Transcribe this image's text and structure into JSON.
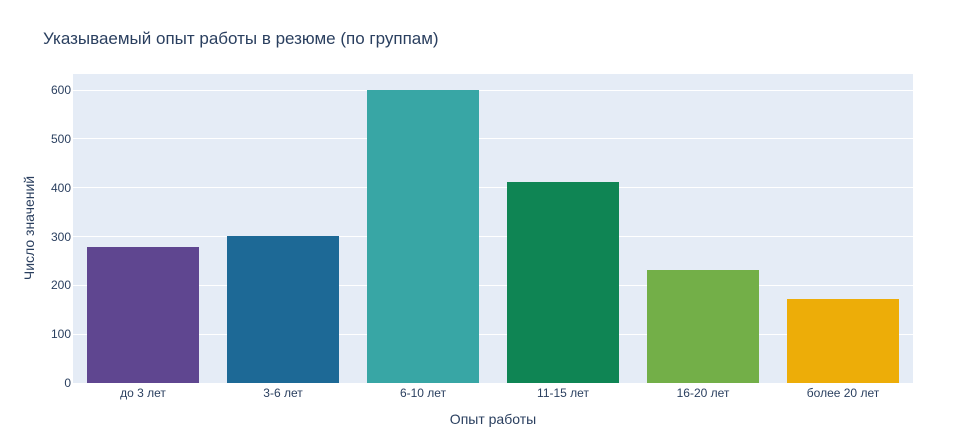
{
  "chart_data": {
    "type": "bar",
    "title": "Указываемый опыт работы в резюме (по группам)",
    "xlabel": "Опыт работы",
    "ylabel": "Число значений",
    "categories": [
      "до 3 лет",
      "3-6 лет",
      "6-10 лет",
      "11-15 лет",
      "16-20 лет",
      "более 20 лет"
    ],
    "values": [
      279,
      302,
      601,
      412,
      232,
      172
    ],
    "colors": [
      "#5f4690",
      "#1d6996",
      "#38a6a5",
      "#0f8554",
      "#73af48",
      "#edad08"
    ],
    "ylim": [
      0,
      633
    ],
    "yticks": [
      "0",
      "100",
      "200",
      "300",
      "400",
      "500",
      "600"
    ],
    "grid": true,
    "legend": "none"
  }
}
